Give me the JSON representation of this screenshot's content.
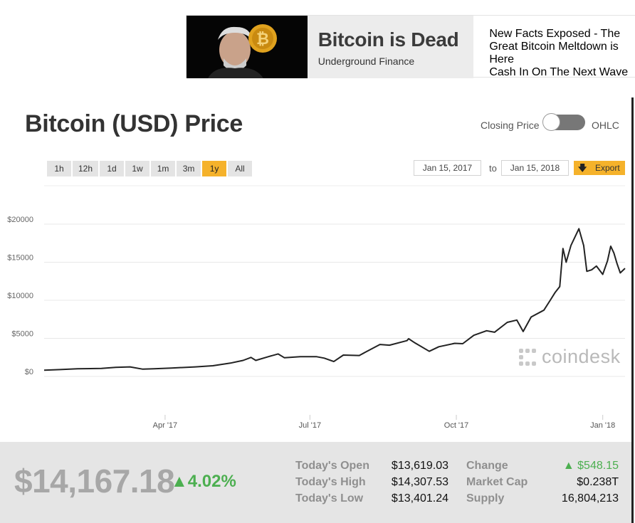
{
  "ad": {
    "title": "Bitcoin is Dead",
    "source": "Underground Finance",
    "description": "New Facts Exposed - The\nGreat Bitcoin Meltdown is Here\nCash In On The Next Wave"
  },
  "header": {
    "title": "Bitcoin (USD) Price",
    "toggle_left": "Closing Price",
    "toggle_right": "OHLC"
  },
  "ranges": [
    {
      "label": "1h",
      "active": false
    },
    {
      "label": "12h",
      "active": false
    },
    {
      "label": "1d",
      "active": false
    },
    {
      "label": "1w",
      "active": false
    },
    {
      "label": "1m",
      "active": false
    },
    {
      "label": "3m",
      "active": false
    },
    {
      "label": "1y",
      "active": true
    },
    {
      "label": "All",
      "active": false
    }
  ],
  "date_range": {
    "from": "Jan 15, 2017",
    "to_label": "to",
    "to": "Jan 15, 2018"
  },
  "export_label": "Export",
  "watermark": "coindesk",
  "chart_data": {
    "type": "line",
    "xlabel": "",
    "ylabel": "",
    "y_ticks": [
      "$20000",
      "$15000",
      "$10000",
      "$5000",
      "$0"
    ],
    "x_ticks": [
      "Apr '17",
      "Jul '17",
      "Oct '17",
      "Jan '18"
    ],
    "ylim": [
      0,
      20000
    ],
    "x_range": [
      "2017-01-15",
      "2018-01-15"
    ],
    "grid": true,
    "line_color": "#222222",
    "series": [
      {
        "values": [
          [
            "2017-01-15",
            820
          ],
          [
            "2017-01-25",
            900
          ],
          [
            "2017-02-05",
            1000
          ],
          [
            "2017-02-20",
            1050
          ],
          [
            "2017-03-01",
            1200
          ],
          [
            "2017-03-10",
            1250
          ],
          [
            "2017-03-18",
            950
          ],
          [
            "2017-03-25",
            1000
          ],
          [
            "2017-04-05",
            1100
          ],
          [
            "2017-04-20",
            1250
          ],
          [
            "2017-05-01",
            1400
          ],
          [
            "2017-05-12",
            1750
          ],
          [
            "2017-05-20",
            2100
          ],
          [
            "2017-05-25",
            2500
          ],
          [
            "2017-05-28",
            2100
          ],
          [
            "2017-06-05",
            2600
          ],
          [
            "2017-06-11",
            2950
          ],
          [
            "2017-06-15",
            2450
          ],
          [
            "2017-06-25",
            2600
          ],
          [
            "2017-07-05",
            2600
          ],
          [
            "2017-07-10",
            2400
          ],
          [
            "2017-07-16",
            1950
          ],
          [
            "2017-07-22",
            2800
          ],
          [
            "2017-08-01",
            2750
          ],
          [
            "2017-08-05",
            3200
          ],
          [
            "2017-08-14",
            4200
          ],
          [
            "2017-08-20",
            4100
          ],
          [
            "2017-08-31",
            4700
          ],
          [
            "2017-09-01",
            4950
          ],
          [
            "2017-09-05",
            4400
          ],
          [
            "2017-09-14",
            3300
          ],
          [
            "2017-09-20",
            3900
          ],
          [
            "2017-09-30",
            4350
          ],
          [
            "2017-10-05",
            4300
          ],
          [
            "2017-10-12",
            5400
          ],
          [
            "2017-10-20",
            6000
          ],
          [
            "2017-10-25",
            5800
          ],
          [
            "2017-11-02",
            7100
          ],
          [
            "2017-11-08",
            7400
          ],
          [
            "2017-11-12",
            5900
          ],
          [
            "2017-11-17",
            7800
          ],
          [
            "2017-11-25",
            8700
          ],
          [
            "2017-11-29",
            10000
          ],
          [
            "2017-12-02",
            11000
          ],
          [
            "2017-12-05",
            11800
          ],
          [
            "2017-12-07",
            16800
          ],
          [
            "2017-12-09",
            15000
          ],
          [
            "2017-12-12",
            17200
          ],
          [
            "2017-12-17",
            19400
          ],
          [
            "2017-12-20",
            17200
          ],
          [
            "2017-12-22",
            13800
          ],
          [
            "2017-12-25",
            14000
          ],
          [
            "2017-12-28",
            14500
          ],
          [
            "2018-01-01",
            13400
          ],
          [
            "2018-01-04",
            15200
          ],
          [
            "2018-01-06",
            17100
          ],
          [
            "2018-01-08",
            16200
          ],
          [
            "2018-01-10",
            14800
          ],
          [
            "2018-01-12",
            13600
          ],
          [
            "2018-01-15",
            14200
          ]
        ]
      }
    ]
  },
  "footer": {
    "price": "$14,167.18",
    "change_pct": "▲4.02%",
    "stats": [
      {
        "label": "Today's Open",
        "value": "$13,619.03"
      },
      {
        "label": "Today's High",
        "value": "$14,307.53"
      },
      {
        "label": "Today's Low",
        "value": "$13,401.24"
      },
      {
        "label": "Change",
        "value": "▲ $548.15"
      },
      {
        "label": "Market Cap",
        "value": "$0.238T"
      },
      {
        "label": "Supply",
        "value": "16,804,213"
      }
    ]
  },
  "colors": {
    "accent": "#f5b22b",
    "positive": "#4caf50",
    "line": "#222222"
  }
}
